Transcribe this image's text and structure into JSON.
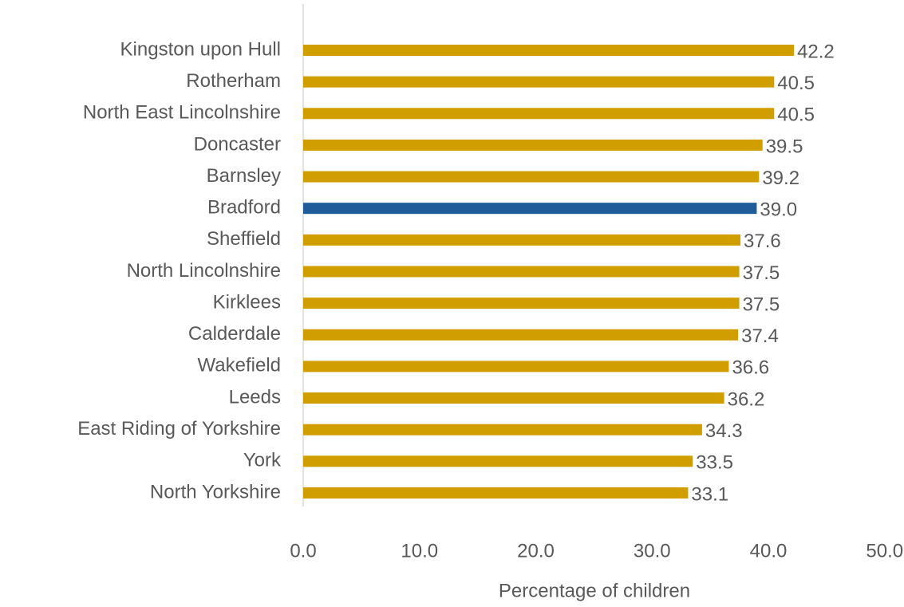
{
  "chart_data": {
    "type": "bar",
    "orientation": "horizontal",
    "x_label": "Percentage of children",
    "categories": [
      "Kingston upon Hull",
      "Rotherham",
      "North East Lincolnshire",
      "Doncaster",
      "Barnsley",
      "Bradford",
      "Sheffield",
      "North Lincolnshire",
      "Kirklees",
      "Calderdale",
      "Wakefield",
      "Leeds",
      "East Riding of Yorkshire",
      "York",
      "North Yorkshire"
    ],
    "values": [
      42.2,
      40.5,
      40.5,
      39.5,
      39.2,
      39,
      37.6,
      37.5,
      37.5,
      37.4,
      36.6,
      36.2,
      34.3,
      33.5,
      33.1
    ],
    "value_labels": [
      "42.2",
      "40.5",
      "40.5",
      "39.5",
      "39.2",
      "39.0",
      "37.6",
      "37.5",
      "37.5",
      "37.4",
      "36.6",
      "36.2",
      "34.3",
      "33.5",
      "33.1"
    ],
    "colors": [
      "#d19e00",
      "#d19e00",
      "#d19e00",
      "#d19e00",
      "#d19e00",
      "#1f5c99",
      "#d19e00",
      "#d19e00",
      "#d19e00",
      "#d19e00",
      "#d19e00",
      "#d19e00",
      "#d19e00",
      "#d19e00",
      "#d19e00"
    ],
    "xlim": [
      0,
      50
    ],
    "xticks": [
      {
        "value": 0,
        "label": "0.0"
      },
      {
        "value": 10,
        "label": "10.0"
      },
      {
        "value": 20,
        "label": "20.0"
      },
      {
        "value": 30,
        "label": "30.0"
      },
      {
        "value": 40,
        "label": "40.0"
      },
      {
        "value": 50,
        "label": "50.0"
      }
    ],
    "grid": false
  }
}
